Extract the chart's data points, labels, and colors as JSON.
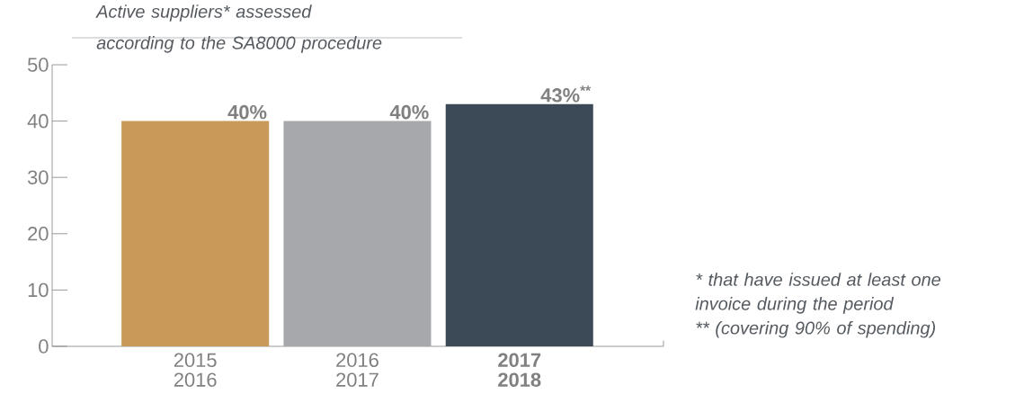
{
  "chart_data": {
    "type": "bar",
    "title": "Active suppliers* assessed according to the SA8000 procedure",
    "categories": [
      "2015 2016",
      "2016 2017",
      "**2017 2018**"
    ],
    "values": [
      40,
      40,
      43
    ],
    "colors": [
      "#c9995a",
      "#a7a8ac",
      "#3c4a57"
    ],
    "value_labels": [
      "40%",
      "40%",
      "43%$^{**}$"
    ],
    "ylim": [
      0,
      50
    ],
    "yticks": [
      0,
      10,
      20,
      30,
      40,
      50
    ],
    "annotations": [
      "* that have issued at least one invoice during the period",
      "** (covering 90% of spending)"
    ]
  }
}
